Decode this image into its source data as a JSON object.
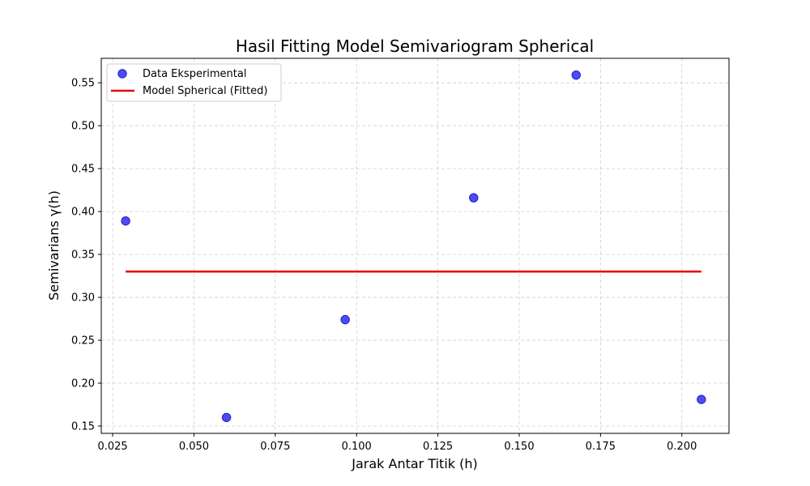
{
  "chart_data": {
    "type": "scatter",
    "title": "Hasil Fitting Model Semivariogram Spherical",
    "xlabel": "Jarak Antar Titik (h)",
    "ylabel": "Semivarians γ(h)",
    "xlim": [
      0.0215,
      0.2145
    ],
    "ylim": [
      0.1415,
      0.5785
    ],
    "xticks": [
      "0.025",
      "0.050",
      "0.075",
      "0.100",
      "0.125",
      "0.150",
      "0.175",
      "0.200"
    ],
    "yticks": [
      "0.15",
      "0.20",
      "0.25",
      "0.30",
      "0.35",
      "0.40",
      "0.45",
      "0.50",
      "0.55"
    ],
    "grid": true,
    "legend_position": "top-left",
    "series": [
      {
        "name": "Data Eksperimental",
        "type": "scatter",
        "color": "#3333ee",
        "x": [
          0.029,
          0.06,
          0.0965,
          0.136,
          0.1675,
          0.206
        ],
        "y": [
          0.389,
          0.16,
          0.274,
          0.416,
          0.559,
          0.181
        ]
      },
      {
        "name": "Model Spherical (Fitted)",
        "type": "line",
        "color": "#e8000b",
        "x": [
          0.029,
          0.206
        ],
        "y": [
          0.33,
          0.33
        ]
      }
    ]
  }
}
